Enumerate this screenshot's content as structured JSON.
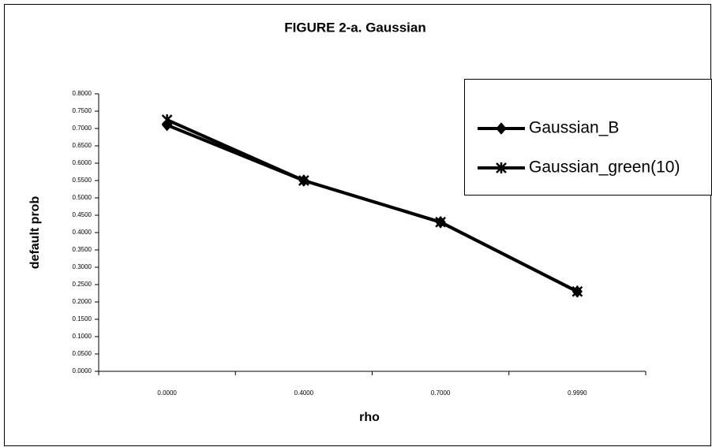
{
  "chart_data": {
    "type": "line",
    "title": "FIGURE 2-a. Gaussian",
    "x_label": "rho",
    "y_label": "default prob",
    "categories": [
      "0.0000",
      "0.4000",
      "0.7000",
      "0.9990"
    ],
    "series": [
      {
        "name": "Gaussian_B",
        "color": "#000000",
        "marker": "diamond",
        "values": [
          0.71,
          0.55,
          0.43,
          0.23
        ]
      },
      {
        "name": "Gaussian_green(10)",
        "color": "#000000",
        "marker": "asterisk",
        "values": [
          0.725,
          0.55,
          0.43,
          0.23
        ]
      }
    ],
    "ylim": [
      0,
      0.8
    ],
    "yticks": [
      {
        "value": 0,
        "label": "0.0000"
      },
      {
        "value": 0.05,
        "label": "0.0500"
      },
      {
        "value": 0.1,
        "label": "0.1000"
      },
      {
        "value": 0.15,
        "label": "0.1500"
      },
      {
        "value": 0.2,
        "label": "0.2000"
      },
      {
        "value": 0.25,
        "label": "0.2500"
      },
      {
        "value": 0.3,
        "label": "0.3000"
      },
      {
        "value": 0.35,
        "label": "0.3500"
      },
      {
        "value": 0.4,
        "label": "0.4000"
      },
      {
        "value": 0.45,
        "label": "0.4500"
      },
      {
        "value": 0.5,
        "label": "0.5000"
      },
      {
        "value": 0.55,
        "label": "0.5500"
      },
      {
        "value": 0.6,
        "label": "0.6000"
      },
      {
        "value": 0.65,
        "label": "0.6500"
      },
      {
        "value": 0.7,
        "label": "0.7000"
      },
      {
        "value": 0.75,
        "label": "0.7500"
      },
      {
        "value": 0.8,
        "label": "0.8000"
      }
    ],
    "grid": false,
    "legend": "right"
  }
}
